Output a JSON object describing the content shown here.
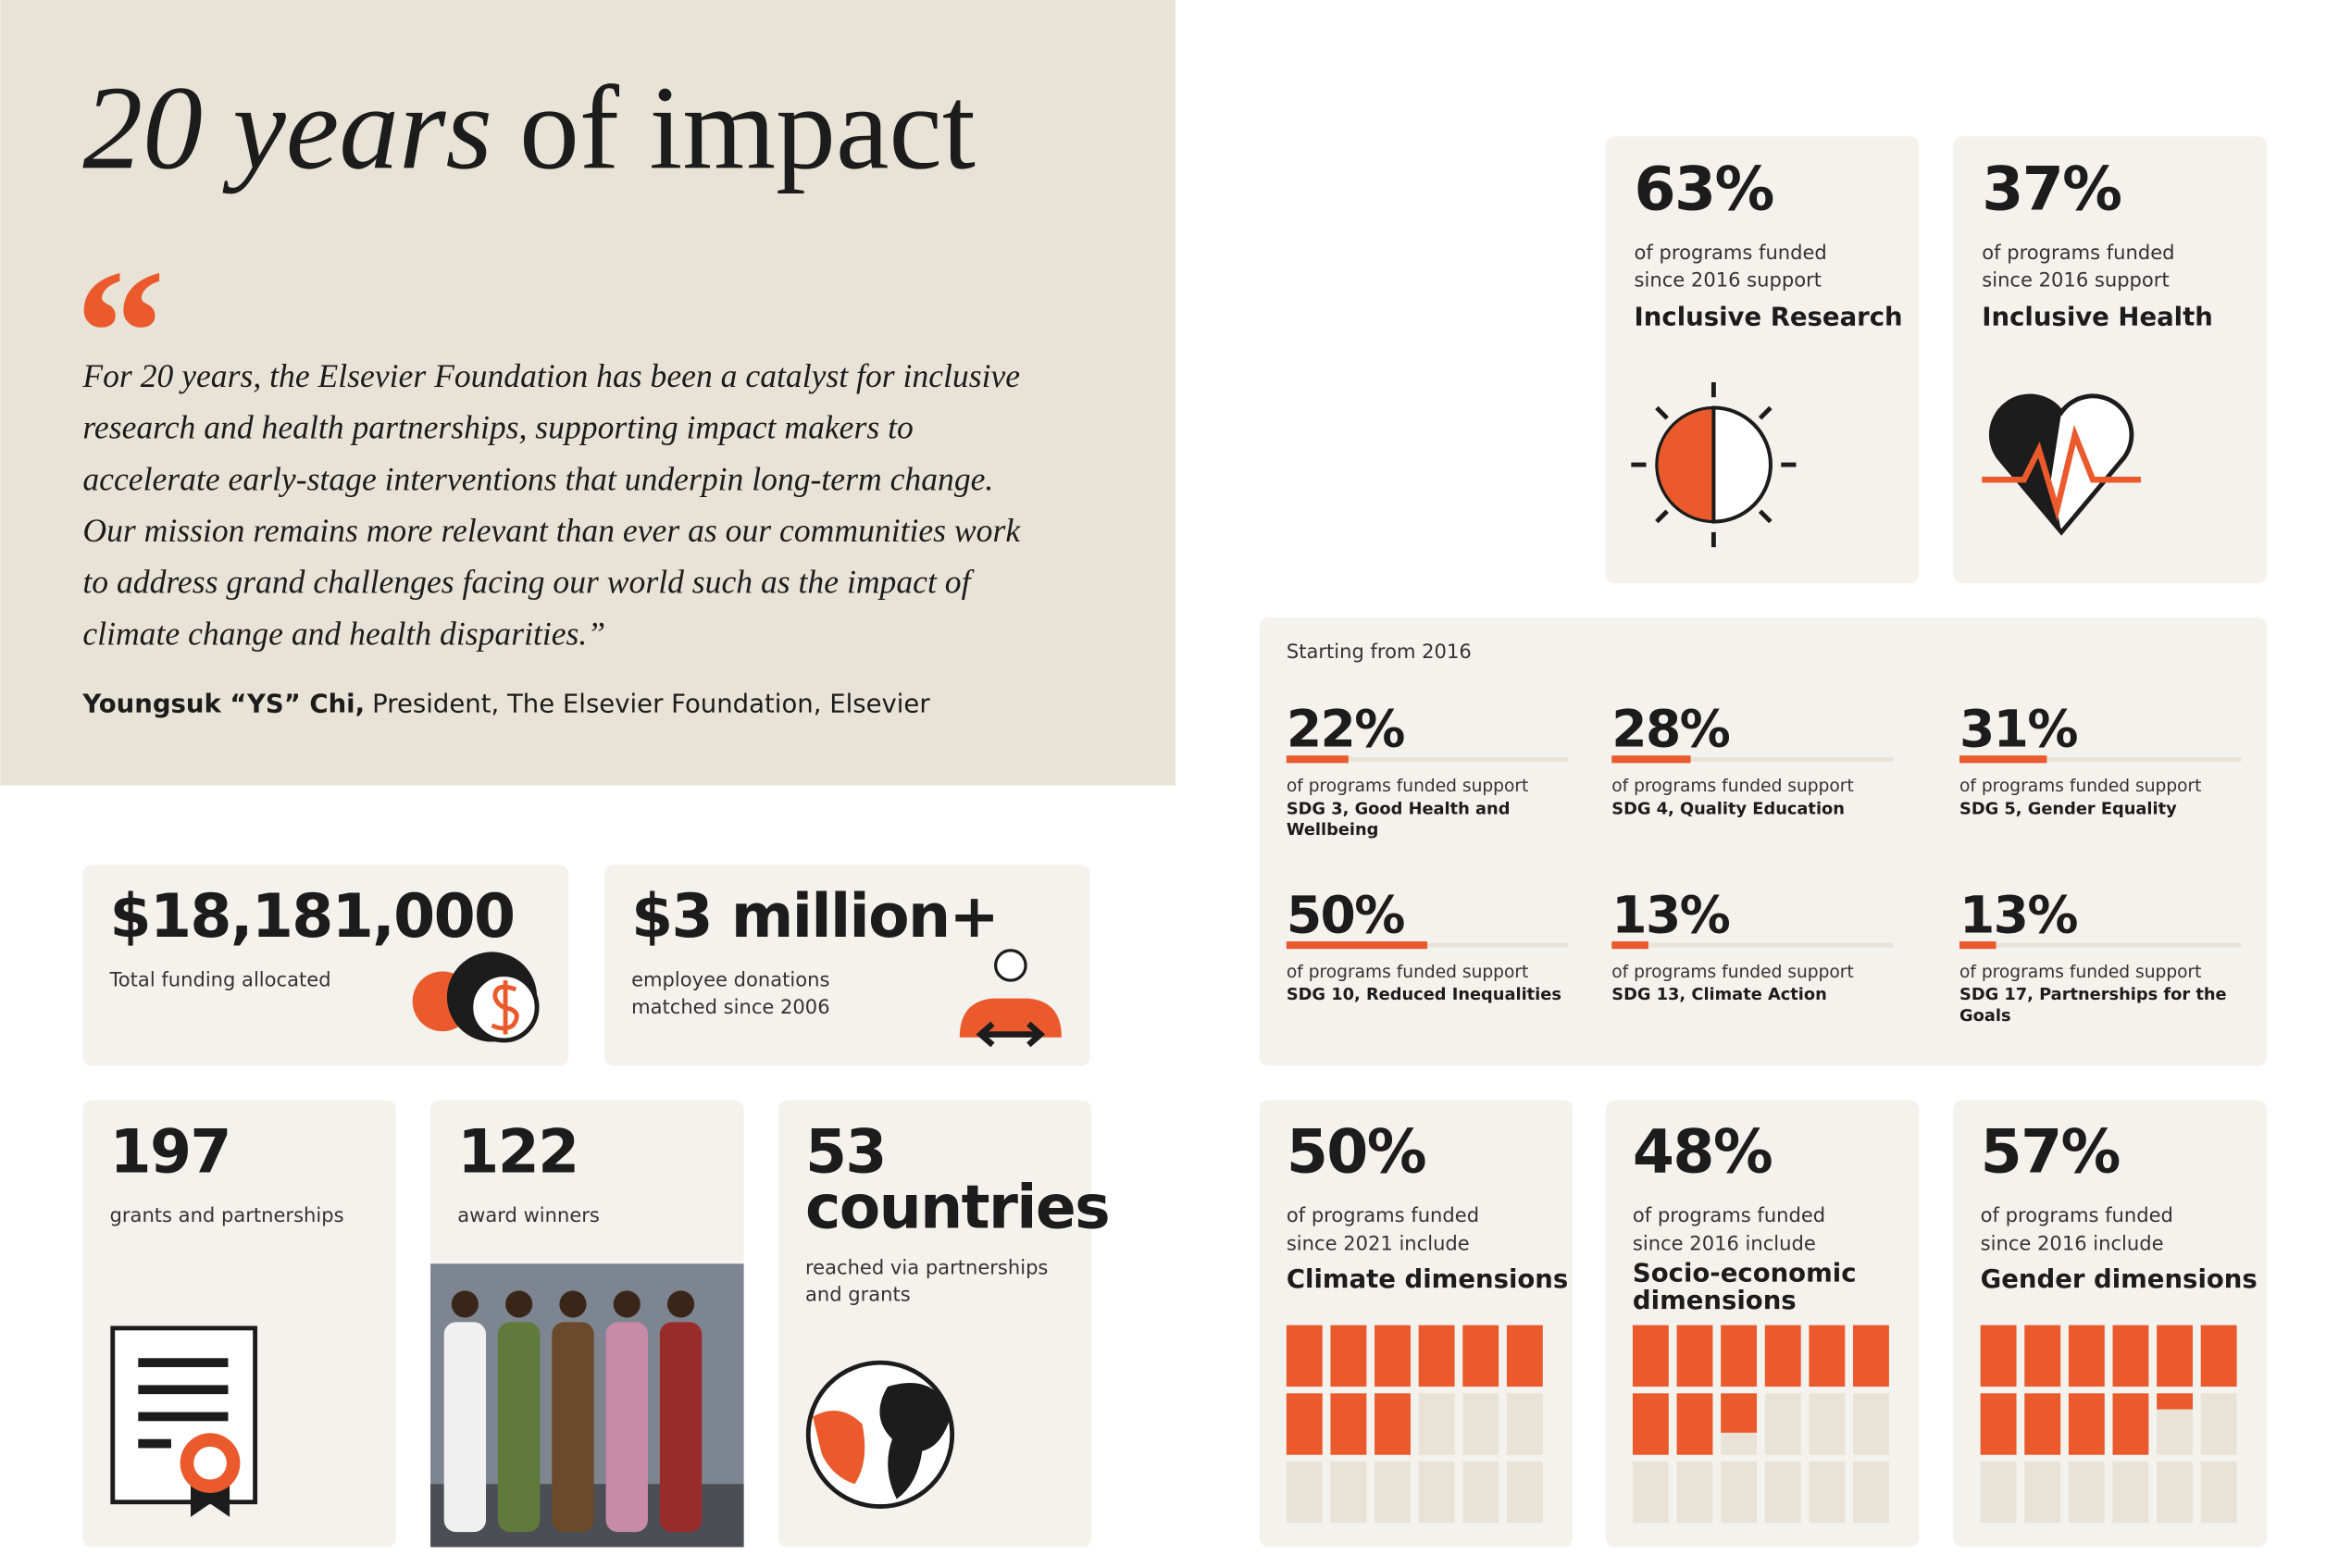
{
  "header": {
    "title_italic": "20 years",
    "title_rest": "of impact",
    "quote_mark": "“",
    "quote_lines": [
      "For 20 years, the Elsevier Foundation has been a catalyst for inclusive",
      "research and health partnerships, supporting impact makers to",
      "accelerate early-stage interventions that underpin long-term change.",
      "Our mission remains more relevant than ever as our communities work",
      "to address grand challenges facing our world such as the impact of",
      "climate change and health disparities.”"
    ],
    "author": "Youngsuk “YS” Chi,",
    "author_role": "President, The Elsevier Foundation, Elsevier"
  },
  "focus_cards": [
    {
      "stat": {
        "value": 63,
        "label": "63%"
      },
      "caption_lines": [
        "of programs funded",
        "since 2016 support"
      ],
      "name": "Inclusive Research"
    },
    {
      "stat": {
        "value": 37,
        "label": "37%"
      },
      "caption_lines": [
        "of programs funded",
        "since 2016 support"
      ],
      "name": "Inclusive Health"
    }
  ],
  "sdg_panel": {
    "heading": "Starting from 2016",
    "items": [
      {
        "stat": {
          "value": 22,
          "label": "22%"
        },
        "caption": "of programs funded support",
        "sdg_lines": [
          "SDG 3, Good Health and",
          "Wellbeing"
        ]
      },
      {
        "stat": {
          "value": 28,
          "label": "28%"
        },
        "caption": "of programs funded support",
        "sdg_lines": [
          "SDG 4, Quality Education"
        ]
      },
      {
        "stat": {
          "value": 31,
          "label": "31%"
        },
        "caption": "of programs funded support",
        "sdg_lines": [
          "SDG 5, Gender Equality"
        ]
      },
      {
        "stat": {
          "value": 50,
          "label": "50%"
        },
        "caption": "of programs funded support",
        "sdg_lines": [
          "SDG 10, Reduced Inequalities"
        ]
      },
      {
        "stat": {
          "value": 13,
          "label": "13%"
        },
        "caption": "of programs funded support",
        "sdg_lines": [
          "SDG 13, Climate Action"
        ]
      },
      {
        "stat": {
          "value": 13,
          "label": "13%"
        },
        "caption": "of programs funded support",
        "sdg_lines": [
          "SDG 17, Partnerships for the",
          "Goals"
        ]
      }
    ]
  },
  "funding_cards": [
    {
      "stat": "$18,181,000",
      "caption_lines": [
        "Total funding allocated"
      ]
    },
    {
      "stat": "$3 million+",
      "caption_lines": [
        "employee donations",
        "matched since 2006"
      ]
    }
  ],
  "count_cards": [
    {
      "stat_lines": [
        "197"
      ],
      "caption_lines": [
        "grants and partnerships"
      ]
    },
    {
      "stat_lines": [
        "122"
      ],
      "caption_lines": [
        "award winners"
      ]
    },
    {
      "stat_lines": [
        "53",
        "countries"
      ],
      "caption_lines": [
        "reached via partnerships",
        "and grants"
      ]
    }
  ],
  "dimension_cards": [
    {
      "stat": {
        "value": 50,
        "label": "50%"
      },
      "caption_lines": [
        "of programs funded",
        "since 2021 include"
      ],
      "name_lines": [
        "Climate dimensions"
      ]
    },
    {
      "stat": {
        "value": 48,
        "label": "48%"
      },
      "caption_lines": [
        "of programs funded",
        "since 2016 include"
      ],
      "name_lines": [
        "Socio-economic",
        "dimensions"
      ]
    },
    {
      "stat": {
        "value": 57,
        "label": "57%"
      },
      "caption_lines": [
        "of programs funded",
        "since 2016 include"
      ],
      "name_lines": [
        "Gender dimensions"
      ]
    }
  ]
}
